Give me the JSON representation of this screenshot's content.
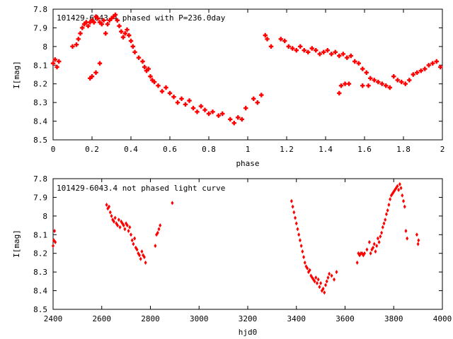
{
  "colors": {
    "points": "#ff0000",
    "axes": "#000000",
    "background": "#ffffff"
  },
  "chart_data": [
    {
      "type": "scatter",
      "title": "101429-6043.4 phased with P=236.0day",
      "xlabel": "phase",
      "ylabel": "I[mag]",
      "xlim": [
        0,
        2
      ],
      "ylim": [
        8.5,
        7.8
      ],
      "y_inverted": true,
      "grid": false,
      "xticks": [
        "0",
        "0.2",
        "0.4",
        "0.6",
        "0.8",
        "1",
        "1.2",
        "1.4",
        "1.6",
        "1.8",
        "2"
      ],
      "yticks": [
        "7.8",
        "7.9",
        "8",
        "8.1",
        "8.2",
        "8.3",
        "8.4",
        "8.5"
      ],
      "marker": "cross",
      "series": [
        {
          "x": [
            0.0,
            0.01,
            0.02,
            0.03,
            0.1,
            0.12,
            0.13,
            0.14,
            0.15,
            0.16,
            0.17,
            0.18,
            0.19,
            0.2,
            0.21,
            0.22,
            0.23,
            0.24,
            0.25,
            0.26,
            0.27,
            0.28,
            0.29,
            0.3,
            0.31,
            0.32,
            0.33,
            0.34,
            0.35,
            0.36,
            0.37,
            0.38,
            0.39,
            0.4,
            0.41,
            0.42,
            0.44,
            0.46,
            0.47,
            0.48,
            0.49,
            0.5,
            0.51,
            0.52,
            0.54,
            0.56,
            0.58,
            0.6,
            0.62,
            0.64,
            0.66,
            0.68,
            0.7,
            0.72,
            0.74,
            0.76,
            0.78,
            0.8,
            0.82,
            0.85,
            0.87,
            0.91,
            0.93,
            0.95,
            0.97,
            0.19,
            0.2,
            0.22,
            0.24,
            0.99,
            1.03,
            1.05,
            1.07,
            1.09,
            1.1,
            1.12,
            1.17,
            1.19,
            1.21,
            1.23,
            1.25,
            1.27,
            1.29,
            1.31,
            1.33,
            1.35,
            1.37,
            1.39,
            1.41,
            1.43,
            1.45,
            1.47,
            1.49,
            1.51,
            1.53,
            1.55,
            1.57,
            1.59,
            1.61,
            1.63,
            1.65,
            1.67,
            1.69,
            1.71,
            1.73,
            1.75,
            1.77,
            1.79,
            1.81,
            1.83,
            1.85,
            1.87,
            1.89,
            1.91,
            1.93,
            1.95,
            1.97,
            1.99,
            1.48,
            1.5,
            1.52,
            1.59,
            1.62,
            1.47
          ],
          "y": [
            8.09,
            8.07,
            8.11,
            8.08,
            8.0,
            7.99,
            7.96,
            7.93,
            7.9,
            7.88,
            7.87,
            7.89,
            7.87,
            7.86,
            7.87,
            7.84,
            7.85,
            7.87,
            7.88,
            7.86,
            7.93,
            7.88,
            7.86,
            7.85,
            7.84,
            7.83,
            7.86,
            7.89,
            7.92,
            7.95,
            7.93,
            7.91,
            7.94,
            7.97,
            8.0,
            8.03,
            8.06,
            8.08,
            8.11,
            8.13,
            8.12,
            8.16,
            8.18,
            8.19,
            8.21,
            8.24,
            8.22,
            8.25,
            8.27,
            8.3,
            8.28,
            8.31,
            8.29,
            8.33,
            8.35,
            8.32,
            8.34,
            8.36,
            8.35,
            8.37,
            8.36,
            8.39,
            8.41,
            8.38,
            8.39,
            8.17,
            8.16,
            8.14,
            8.09,
            8.33,
            8.28,
            8.3,
            8.26,
            7.94,
            7.96,
            8.0,
            7.96,
            7.97,
            8.0,
            8.01,
            8.02,
            8.0,
            8.02,
            8.03,
            8.01,
            8.02,
            8.04,
            8.03,
            8.02,
            8.04,
            8.03,
            8.05,
            8.04,
            8.06,
            8.05,
            8.08,
            8.09,
            8.12,
            8.14,
            8.17,
            8.18,
            8.19,
            8.2,
            8.21,
            8.22,
            8.16,
            8.18,
            8.19,
            8.2,
            8.18,
            8.15,
            8.14,
            8.13,
            8.12,
            8.1,
            8.09,
            8.08,
            8.11,
            8.21,
            8.2,
            8.2,
            8.21,
            8.21,
            8.25
          ]
        }
      ]
    },
    {
      "type": "scatter",
      "title": "101429-6043.4 not phased light curve",
      "xlabel": "hjd0",
      "ylabel": "I[mag]",
      "xlim": [
        2400,
        4000
      ],
      "ylim": [
        8.5,
        7.8
      ],
      "y_inverted": true,
      "grid": false,
      "xticks": [
        "2400",
        "2600",
        "2800",
        "3000",
        "3200",
        "3400",
        "3600",
        "3800",
        "4000"
      ],
      "yticks": [
        "7.8",
        "7.9",
        "8",
        "8.1",
        "8.2",
        "8.3",
        "8.4",
        "8.5"
      ],
      "marker": "diamond",
      "series": [
        {
          "x": [
            2400,
            2403,
            2406,
            2409,
            2620,
            2625,
            2630,
            2635,
            2640,
            2645,
            2650,
            2655,
            2660,
            2665,
            2670,
            2675,
            2680,
            2685,
            2690,
            2695,
            2700,
            2705,
            2710,
            2715,
            2720,
            2725,
            2730,
            2735,
            2740,
            2745,
            2750,
            2755,
            2760,
            2765,
            2770,
            2775,
            2780,
            2820,
            2825,
            2830,
            2835,
            2840,
            2890,
            3380,
            3385,
            3390,
            3395,
            3400,
            3405,
            3410,
            3415,
            3420,
            3425,
            3430,
            3435,
            3440,
            3445,
            3450,
            3455,
            3460,
            3465,
            3470,
            3475,
            3480,
            3485,
            3490,
            3495,
            3500,
            3505,
            3510,
            3515,
            3520,
            3525,
            3530,
            3535,
            3545,
            3555,
            3565,
            3650,
            3655,
            3660,
            3665,
            3670,
            3675,
            3680,
            3690,
            3700,
            3705,
            3710,
            3715,
            3720,
            3725,
            3730,
            3735,
            3740,
            3745,
            3750,
            3755,
            3760,
            3765,
            3770,
            3775,
            3780,
            3785,
            3790,
            3795,
            3800,
            3805,
            3810,
            3815,
            3820,
            3825,
            3830,
            3835,
            3840,
            3845,
            3850,
            3855,
            3895,
            3900,
            3902
          ],
          "y": [
            8.16,
            8.13,
            8.08,
            8.14,
            7.94,
            7.96,
            7.95,
            7.98,
            8.0,
            8.02,
            8.03,
            8.01,
            8.04,
            8.05,
            8.02,
            8.06,
            8.03,
            8.04,
            8.05,
            8.07,
            8.04,
            8.05,
            8.08,
            8.06,
            8.1,
            8.13,
            8.15,
            8.12,
            8.17,
            8.18,
            8.2,
            8.21,
            8.23,
            8.19,
            8.21,
            8.22,
            8.25,
            8.16,
            8.1,
            8.09,
            8.07,
            8.05,
            7.93,
            7.92,
            7.95,
            7.98,
            8.01,
            8.04,
            8.07,
            8.1,
            8.13,
            8.16,
            8.19,
            8.22,
            8.25,
            8.27,
            8.28,
            8.3,
            8.29,
            8.32,
            8.33,
            8.34,
            8.35,
            8.33,
            8.36,
            8.34,
            8.38,
            8.36,
            8.4,
            8.39,
            8.41,
            8.37,
            8.35,
            8.33,
            8.31,
            8.32,
            8.34,
            8.3,
            8.25,
            8.2,
            8.21,
            8.2,
            8.2,
            8.21,
            8.2,
            8.18,
            8.14,
            8.2,
            8.18,
            8.17,
            8.15,
            8.19,
            8.16,
            8.12,
            8.14,
            8.11,
            8.09,
            8.06,
            8.04,
            8.02,
            7.99,
            7.97,
            7.94,
            7.91,
            7.89,
            7.88,
            7.87,
            7.86,
            7.85,
            7.84,
            7.86,
            7.83,
            7.85,
            7.89,
            7.92,
            7.95,
            8.08,
            8.12,
            8.1,
            8.15,
            8.13
          ]
        }
      ]
    }
  ]
}
